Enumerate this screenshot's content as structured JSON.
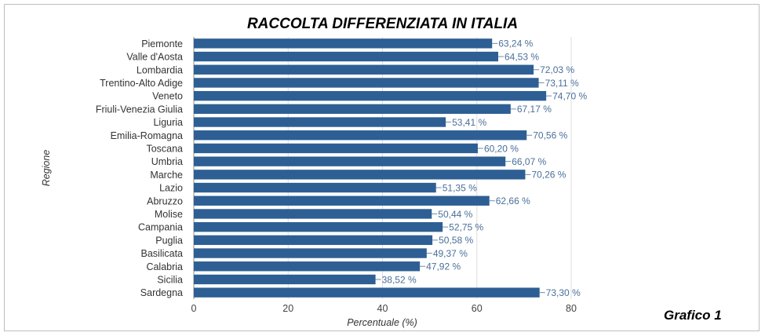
{
  "chart_data": {
    "type": "bar",
    "orientation": "horizontal",
    "title": "RACCOLTA DIFFERENZIATA IN ITALIA",
    "xlabel": "Percentuale (%)",
    "ylabel": "Regione",
    "xlim": [
      0,
      80
    ],
    "xticks": [
      "0",
      "20",
      "40",
      "60",
      "80"
    ],
    "grid": true,
    "bar_color": "#2e5f94",
    "label_color": "#4a6f9a",
    "categories": [
      "Piemonte",
      "Valle d'Aosta",
      "Lombardia",
      "Trentino-Alto Adige",
      "Veneto",
      "Friuli-Venezia Giulia",
      "Liguria",
      "Emilia-Romagna",
      "Toscana",
      "Umbria",
      "Marche",
      "Lazio",
      "Abruzzo",
      "Molise",
      "Campania",
      "Puglia",
      "Basilicata",
      "Calabria",
      "Sicilia",
      "Sardegna"
    ],
    "values": [
      63.24,
      64.53,
      72.03,
      73.11,
      74.7,
      67.17,
      53.41,
      70.56,
      60.2,
      66.07,
      70.26,
      51.35,
      62.66,
      50.44,
      52.75,
      50.58,
      49.37,
      47.92,
      38.52,
      73.3
    ],
    "labels": [
      "63,24 %",
      "64,53 %",
      "72,03 %",
      "73,11 %",
      "74,70 %",
      "67,17 %",
      "53,41 %",
      "70,56 %",
      "60,20 %",
      "66,07 %",
      "70,26 %",
      "51,35 %",
      "62,66 %",
      "50,44 %",
      "52,75 %",
      "50,58 %",
      "49,37 %",
      "47,92 %",
      "38,52 %",
      "73,30 %"
    ]
  },
  "badge": "Grafico 1"
}
